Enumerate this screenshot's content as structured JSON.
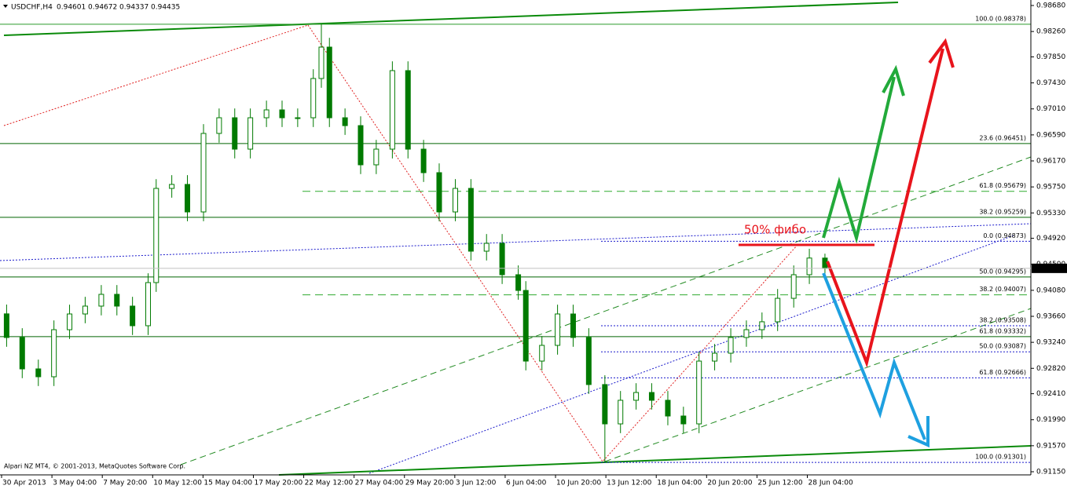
{
  "chart_data": {
    "type": "candlestick",
    "symbol": "USDCHF,H4",
    "annotation": "50% фибо",
    "copyright": "Alpari NZ MT4, © 2001-2013, MetaQuotes Software Corp.",
    "color": "#007a00",
    "xlim": [
      0,
      20.47
    ],
    "xticks": [
      {
        "value": 0,
        "label": "30 Apr 2013"
      },
      {
        "value": 1,
        "label": "3 May 04:00"
      },
      {
        "value": 2,
        "label": "7 May 20:00"
      },
      {
        "value": 3,
        "label": "10 May 12:00"
      },
      {
        "value": 4,
        "label": "15 May 04:00"
      },
      {
        "value": 5,
        "label": "17 May 20:00"
      },
      {
        "value": 6,
        "label": "22 May 12:00"
      },
      {
        "value": 7,
        "label": "27 May 04:00"
      },
      {
        "value": 8,
        "label": "29 May 20:00"
      },
      {
        "value": 9,
        "label": "3 Jun 12:00"
      },
      {
        "value": 10,
        "label": "6 Jun 04:00"
      },
      {
        "value": 11,
        "label": "10 Jun 20:00"
      },
      {
        "value": 12,
        "label": "13 Jun 12:00"
      },
      {
        "value": 13,
        "label": "18 Jun 04:00"
      },
      {
        "value": 14,
        "label": "20 Jun 20:00"
      },
      {
        "value": 15,
        "label": "25 Jun 12:00"
      },
      {
        "value": 16,
        "label": "28 Jun 04:00"
      }
    ],
    "ylim": [
      0.9115,
      0.9868
    ],
    "yticks": [
      {
        "value": 0.9868,
        "label": "0.98680"
      },
      {
        "value": 0.9826,
        "label": "0.98260"
      },
      {
        "value": 0.9785,
        "label": "0.97850"
      },
      {
        "value": 0.9743,
        "label": "0.97430"
      },
      {
        "value": 0.9701,
        "label": "0.97010"
      },
      {
        "value": 0.9659,
        "label": "0.96590"
      },
      {
        "value": 0.9617,
        "label": "0.96170"
      },
      {
        "value": 0.9575,
        "label": "0.95750"
      },
      {
        "value": 0.9533,
        "label": "0.95330"
      },
      {
        "value": 0.9492,
        "label": "0.94920"
      },
      {
        "value": 0.945,
        "label": "0.94500"
      },
      {
        "value": 0.9408,
        "label": "0.94080"
      },
      {
        "value": 0.9366,
        "label": "0.93660"
      },
      {
        "value": 0.9324,
        "label": "0.93240"
      },
      {
        "value": 0.9282,
        "label": "0.92820"
      },
      {
        "value": 0.9241,
        "label": "0.92410"
      },
      {
        "value": 0.9199,
        "label": "0.91990"
      },
      {
        "value": 0.9157,
        "label": "0.91570"
      },
      {
        "value": 0.9115,
        "label": "0.91150"
      }
    ],
    "levels": [
      {
        "value": 0.98378,
        "label": "100.0 (0.98378)",
        "color": "#2a9a2a",
        "style": "solid"
      },
      {
        "value": 0.96451,
        "label": "23.6 (0.96451)",
        "color": "#006400",
        "style": "solid"
      },
      {
        "value": 0.95679,
        "label": "61.8 (0.95679)",
        "color": "#2faa2f",
        "style": "dashed"
      },
      {
        "value": 0.95259,
        "label": "38.2 (0.95259)",
        "color": "#006400",
        "style": "solid"
      },
      {
        "value": 0.94873,
        "label": "0.0 (0.94873)",
        "color": "#1a1acc",
        "style": "dotted"
      },
      {
        "value": 0.94295,
        "label": "50.0 (0.94295)",
        "color": "#006400",
        "style": "solid"
      },
      {
        "value": 0.94007,
        "label": "38.2 (0.94007)",
        "color": "#2faa2f",
        "style": "dashed"
      },
      {
        "value": 0.93508,
        "label": "38.2 (0.93508)",
        "color": "#1a1acc",
        "style": "dotted"
      },
      {
        "value": 0.93332,
        "label": "61.8 (0.93332)",
        "color": "#006400",
        "style": "solid"
      },
      {
        "value": 0.93087,
        "label": "50.0 (0.93087)",
        "color": "#1a1acc",
        "style": "dotted"
      },
      {
        "value": 0.92666,
        "label": "61.8 (0.92666)",
        "color": "#1a1acc",
        "style": "dotted"
      },
      {
        "value": 0.91301,
        "label": "100.0 (0.91301)",
        "color": "#1a1acc",
        "style": "dotted"
      }
    ],
    "x": [
      0.1,
      0.41,
      0.73,
      1.04,
      1.35,
      1.66,
      1.98,
      2.29,
      2.6,
      2.91,
      3.07,
      3.38,
      3.69,
      4.01,
      4.32,
      4.63,
      4.94,
      5.26,
      5.57,
      5.88,
      6.19,
      6.35,
      6.51,
      6.82,
      7.13,
      7.44,
      7.76,
      8.07,
      8.38,
      8.69,
      9.01,
      9.32,
      9.63,
      9.94,
      10.26,
      10.41,
      10.73,
      11.04,
      11.35,
      11.66,
      11.98,
      12.29,
      12.6,
      12.91,
      13.23,
      13.54,
      13.85,
      14.16,
      14.48,
      14.79,
      15.1,
      15.41,
      15.73,
      16.04,
      16.35
    ],
    "open": [
      0.937,
      0.93318,
      0.92811,
      0.92684,
      0.93444,
      0.93698,
      0.93825,
      0.94015,
      0.93825,
      0.93508,
      0.94205,
      0.95726,
      0.9579,
      0.95346,
      0.96614,
      0.96867,
      0.9636,
      0.96867,
      0.96994,
      0.96867,
      0.96867,
      0.97501,
      0.98008,
      0.96867,
      0.9674,
      0.96107,
      0.9636,
      0.97628,
      0.9636,
      0.9598,
      0.95346,
      0.95726,
      0.94712,
      0.94839,
      0.94332,
      0.94078,
      0.92937,
      0.93191,
      0.93698,
      0.93318,
      0.92558,
      0.91923,
      0.92304,
      0.9243,
      0.92304,
      0.9205,
      0.91923,
      0.92937,
      0.93064,
      0.93318,
      0.93444,
      0.93572,
      0.93951,
      0.94332,
      0.94601
    ],
    "high": [
      0.9385,
      0.93468,
      0.92961,
      0.93594,
      0.93848,
      0.93975,
      0.94165,
      0.94165,
      0.93975,
      0.94355,
      0.95876,
      0.9594,
      0.9594,
      0.96764,
      0.97017,
      0.97017,
      0.97017,
      0.97144,
      0.97144,
      0.97017,
      0.97651,
      0.98378,
      0.98158,
      0.97017,
      0.9689,
      0.9651,
      0.97778,
      0.97778,
      0.9651,
      0.9613,
      0.95876,
      0.95876,
      0.94989,
      0.94989,
      0.94482,
      0.94228,
      0.93341,
      0.93848,
      0.93848,
      0.93468,
      0.92708,
      0.92454,
      0.9258,
      0.9258,
      0.92454,
      0.922,
      0.93087,
      0.93214,
      0.93468,
      0.93594,
      0.93722,
      0.94101,
      0.94482,
      0.94751,
      0.94672
    ],
    "low": [
      0.93168,
      0.92661,
      0.92534,
      0.92534,
      0.93294,
      0.93548,
      0.93675,
      0.93675,
      0.93358,
      0.93358,
      0.94055,
      0.95576,
      0.95196,
      0.95196,
      0.96464,
      0.9621,
      0.9621,
      0.96717,
      0.96717,
      0.96717,
      0.96717,
      0.97351,
      0.96717,
      0.9659,
      0.95957,
      0.95957,
      0.9621,
      0.9621,
      0.9583,
      0.95196,
      0.95196,
      0.94562,
      0.94562,
      0.94182,
      0.93928,
      0.92787,
      0.92787,
      0.93041,
      0.93168,
      0.92408,
      0.91301,
      0.91773,
      0.92154,
      0.92154,
      0.919,
      0.91773,
      0.91773,
      0.92787,
      0.92914,
      0.93168,
      0.93294,
      0.93422,
      0.93801,
      0.94182,
      0.94337
    ],
    "close": [
      0.93318,
      0.92811,
      0.92684,
      0.93444,
      0.93698,
      0.93825,
      0.94015,
      0.93825,
      0.93508,
      0.94205,
      0.95726,
      0.9579,
      0.95346,
      0.96614,
      0.96867,
      0.9636,
      0.96867,
      0.96994,
      0.96867,
      0.96867,
      0.97501,
      0.98008,
      0.96867,
      0.9674,
      0.96107,
      0.9636,
      0.97628,
      0.9636,
      0.9598,
      0.95346,
      0.95726,
      0.94712,
      0.94839,
      0.94332,
      0.94078,
      0.92937,
      0.93191,
      0.93698,
      0.93318,
      0.92558,
      0.91923,
      0.92304,
      0.9243,
      0.92304,
      0.9205,
      0.91923,
      0.92937,
      0.93064,
      0.93318,
      0.93444,
      0.93572,
      0.93951,
      0.94332,
      0.94601,
      0.94435
    ]
  }
}
